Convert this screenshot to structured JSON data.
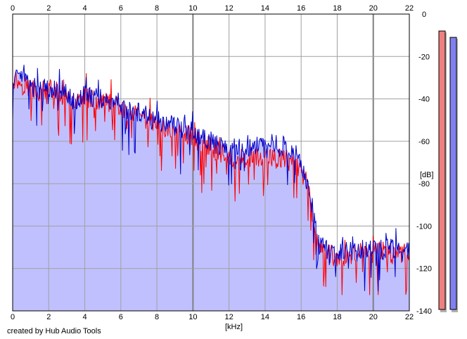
{
  "credit_text": "created by Hub Audio Tools",
  "chart_data": {
    "type": "area",
    "xlabel": "[kHz]",
    "ylabel": "[dB]",
    "xlim": [
      0,
      22
    ],
    "ylim": [
      -140,
      0
    ],
    "x_ticks": [
      0,
      2,
      4,
      6,
      8,
      10,
      12,
      14,
      16,
      18,
      20,
      22
    ],
    "y_ticks": [
      0,
      -20,
      -40,
      -60,
      -80,
      -100,
      -120,
      -140
    ],
    "x_ticks_labeled_top_and_bottom": true,
    "y_ticks_side": "right",
    "grid": true,
    "colors": {
      "fill": "#c0c0ff",
      "left_channel": "#ff0000",
      "right_channel": "#0000cc",
      "grid_minor": "#a0a0a0",
      "grid_major": "#808080",
      "meter_left": "#f08080",
      "meter_right": "#8080f0"
    },
    "series": [
      {
        "channel": "left",
        "color": "#ff0000",
        "x": [
          0,
          0.5,
          1,
          1.5,
          2,
          2.5,
          3,
          3.5,
          4,
          4.5,
          5,
          5.5,
          6,
          6.5,
          7,
          7.5,
          8,
          8.5,
          9,
          9.5,
          10,
          10.5,
          11,
          11.5,
          12,
          12.5,
          13,
          13.5,
          14,
          14.5,
          15,
          15.5,
          16,
          16.5,
          16.8,
          17,
          17.5,
          18,
          18.5,
          19,
          19.5,
          20,
          20.5,
          21,
          21.5,
          22
        ],
        "y": [
          -30,
          -33,
          -35,
          -37,
          -35,
          -37,
          -40,
          -42,
          -39,
          -40,
          -41,
          -43,
          -45,
          -46,
          -49,
          -51,
          -52,
          -54,
          -55,
          -56,
          -58,
          -61,
          -63,
          -65,
          -67,
          -68,
          -68,
          -67,
          -68,
          -69,
          -68,
          -70,
          -74,
          -88,
          -104,
          -110,
          -113,
          -115,
          -114,
          -114,
          -113,
          -113,
          -112,
          -113,
          -113,
          -114
        ]
      },
      {
        "channel": "right",
        "color": "#0000cc",
        "x": [
          0,
          0.5,
          1,
          1.5,
          2,
          2.5,
          3,
          3.5,
          4,
          4.5,
          5,
          5.5,
          6,
          6.5,
          7,
          7.5,
          8,
          8.5,
          9,
          9.5,
          10,
          10.5,
          11,
          11.5,
          12,
          12.5,
          13,
          13.5,
          14,
          14.5,
          15,
          15.5,
          16,
          16.5,
          16.8,
          17,
          17.5,
          18,
          18.5,
          19,
          19.5,
          20,
          20.5,
          21,
          21.5,
          22
        ],
        "y": [
          -29,
          -32,
          -34,
          -36,
          -34,
          -36,
          -39,
          -41,
          -38,
          -39,
          -40,
          -42,
          -44,
          -45,
          -47,
          -49,
          -50,
          -52,
          -53,
          -54,
          -55,
          -58,
          -60,
          -62,
          -63,
          -63,
          -62,
          -62,
          -63,
          -63,
          -62,
          -64,
          -69,
          -85,
          -102,
          -109,
          -111,
          -114,
          -112,
          -112,
          -111,
          -112,
          -111,
          -111,
          -112,
          -112
        ]
      }
    ],
    "level_meters": [
      {
        "channel": "left",
        "color": "#f08080",
        "level_db": -4
      },
      {
        "channel": "right",
        "color": "#8080f0",
        "level_db": -7
      }
    ]
  }
}
